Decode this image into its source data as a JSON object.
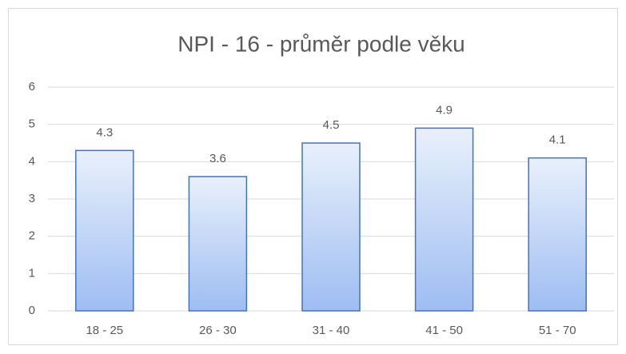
{
  "chart_data": {
    "type": "bar",
    "title": "NPI - 16 - průměr podle věku",
    "categories": [
      "18 - 25",
      "26 - 30",
      "31 - 40",
      "41 - 50",
      "51 - 70"
    ],
    "values": [
      4.3,
      3.6,
      4.5,
      4.9,
      4.1
    ],
    "color": "#4472c4",
    "ylim": [
      0,
      6
    ],
    "yticks": [
      0,
      1,
      2,
      3,
      4,
      5,
      6
    ],
    "grid": true
  }
}
